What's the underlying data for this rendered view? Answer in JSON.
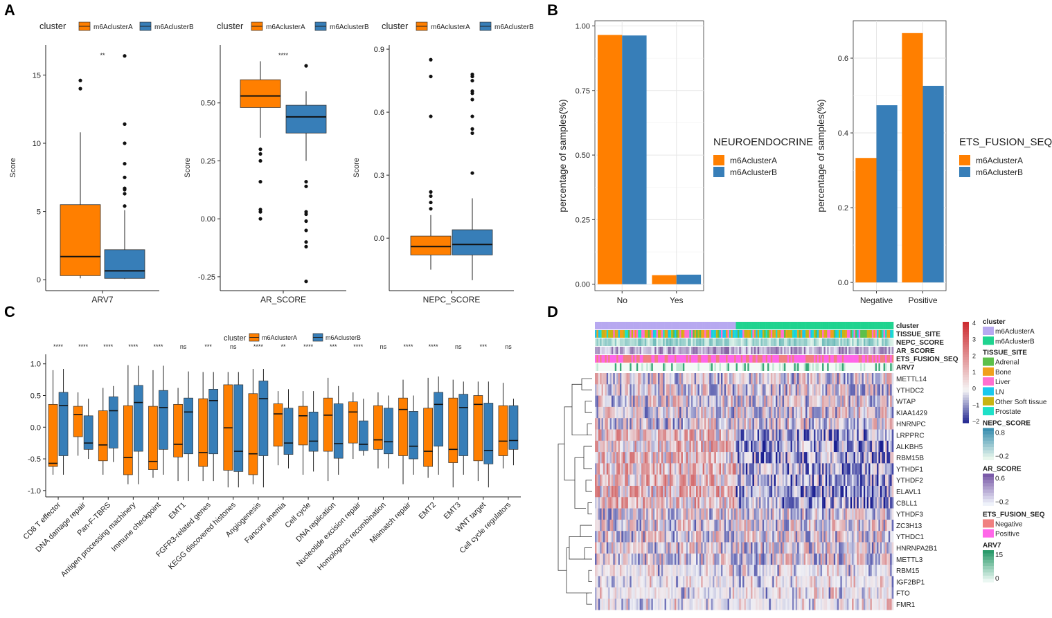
{
  "panels": {
    "a": "A",
    "b": "B",
    "c": "C",
    "d": "D"
  },
  "colors": {
    "clusterA": "#ff7f00",
    "clusterB": "#377eb8"
  },
  "chart_data": [
    {
      "id": "A1",
      "type": "box",
      "legend_title": "cluster",
      "legend": [
        "m6AclusterA",
        "m6AclusterB"
      ],
      "xlabel": "ARV7",
      "ylabel": "Score",
      "ylim": [
        -0.8,
        17.2
      ],
      "ticks": [
        0,
        5,
        10,
        15
      ],
      "tick_labels": [
        "0",
        "5",
        "10",
        "15"
      ],
      "significance": "**",
      "boxes": [
        {
          "group": "m6AclusterA",
          "min": 0.1,
          "q1": 0.3,
          "median": 1.7,
          "q3": 5.5,
          "max": 10.8,
          "outliers": [
            14.0,
            14.6
          ]
        },
        {
          "group": "m6AclusterB",
          "min": 0.05,
          "q1": 0.1,
          "median": 0.65,
          "q3": 2.2,
          "max": 5.1,
          "outliers": [
            5.4,
            6.3,
            6.6,
            6.7,
            7.5,
            8.5,
            10.0,
            11.4,
            16.4
          ]
        }
      ]
    },
    {
      "id": "A2",
      "type": "box",
      "legend_title": "cluster",
      "legend": [
        "m6AclusterA",
        "m6AclusterB"
      ],
      "xlabel": "AR_SCORE",
      "ylabel": "Score",
      "ylim": [
        -0.31,
        0.75
      ],
      "ticks": [
        -0.25,
        0,
        0.25,
        0.5
      ],
      "tick_labels": [
        "-0.25",
        "0.00",
        "0.25",
        "0.50"
      ],
      "significance": "****",
      "boxes": [
        {
          "group": "m6AclusterA",
          "min": 0.35,
          "q1": 0.48,
          "median": 0.53,
          "q3": 0.6,
          "max": 0.68,
          "outliers": [
            0.3,
            0.28,
            0.25,
            0.16,
            0.04,
            0.03,
            0.0
          ]
        },
        {
          "group": "m6AclusterB",
          "min": 0.25,
          "q1": 0.37,
          "median": 0.44,
          "q3": 0.49,
          "max": 0.55,
          "outliers": [
            0.66,
            0.16,
            0.14,
            0.03,
            0.02,
            -0.01,
            -0.05,
            -0.1,
            -0.12,
            -0.27
          ]
        }
      ]
    },
    {
      "id": "A3",
      "type": "box",
      "legend_title": "cluster",
      "legend": [
        "m6AclusterA",
        "m6AclusterB"
      ],
      "xlabel": "NEPC_SCORE",
      "ylabel": "Score",
      "ylim": [
        -0.25,
        0.92
      ],
      "ticks": [
        0,
        0.3,
        0.6,
        0.9
      ],
      "tick_labels": [
        "0.0",
        "0.3",
        "0.6",
        "0.9"
      ],
      "significance": "",
      "boxes": [
        {
          "group": "m6AclusterA",
          "min": -0.15,
          "q1": -0.08,
          "median": -0.04,
          "q3": 0.01,
          "max": 0.11,
          "outliers": [
            0.14,
            0.17,
            0.2,
            0.22,
            0.58,
            0.77,
            0.85
          ]
        },
        {
          "group": "m6AclusterB",
          "min": -0.2,
          "q1": -0.08,
          "median": -0.03,
          "q3": 0.04,
          "max": 0.19,
          "outliers": [
            0.31,
            0.5,
            0.52,
            0.58,
            0.66,
            0.69,
            0.7,
            0.75,
            0.77,
            0.78
          ]
        }
      ]
    },
    {
      "id": "B1",
      "type": "bar",
      "legend_title": "NEUROENDOCRINE",
      "legend": [
        "m6AclusterA",
        "m6AclusterB"
      ],
      "categories": [
        "No",
        "Yes"
      ],
      "ylabel": "percentage of samples(%)",
      "ylim": [
        -0.025,
        1.02
      ],
      "ticks": [
        0,
        0.25,
        0.5,
        0.75,
        1.0
      ],
      "tick_labels": [
        "0.00",
        "0.25",
        "0.50",
        "0.75",
        "1.00"
      ],
      "series": [
        {
          "name": "m6AclusterA",
          "values": [
            0.965,
            0.035
          ]
        },
        {
          "name": "m6AclusterB",
          "values": [
            0.963,
            0.037
          ]
        }
      ]
    },
    {
      "id": "B2",
      "type": "bar",
      "legend_title": "ETS_FUSION_SEQ",
      "legend": [
        "m6AclusterA",
        "m6AclusterB"
      ],
      "categories": [
        "Negative",
        "Positive"
      ],
      "ylabel": "percentage of samples(%)",
      "ylim": [
        -0.022,
        0.7
      ],
      "ticks": [
        0,
        0.2,
        0.4,
        0.6
      ],
      "tick_labels": [
        "0.0",
        "0.2",
        "0.4",
        "0.6"
      ],
      "series": [
        {
          "name": "m6AclusterA",
          "values": [
            0.333,
            0.667
          ]
        },
        {
          "name": "m6AclusterB",
          "values": [
            0.474,
            0.526
          ]
        }
      ]
    },
    {
      "id": "C",
      "type": "box",
      "legend_title": "cluster",
      "legend": [
        "m6AclusterA",
        "m6AclusterB"
      ],
      "ylim": [
        -1.1,
        1.15
      ],
      "ticks": [
        -1.0,
        -0.5,
        0.0,
        0.5,
        1.0
      ],
      "tick_labels": [
        "-1.0",
        "-0.5",
        "0.0",
        "0.5",
        "1.0"
      ],
      "categories": [
        "CD8 T effector",
        "DNA damage repair",
        "Pan-F-TBRS",
        "Antigen processing machinery",
        "Immune checkpoint",
        "EMT1",
        "FGFR3-related genes",
        "KEGG discovered histones",
        "Angiogenesis",
        "Fanconi anemia",
        "Cell cycle",
        "DNA replication",
        "Nucleotide excision repair",
        "Homologous recombination",
        "Mismatch repair",
        "EMT2",
        "EMT3",
        "WNT target",
        "Cell cycle regulators"
      ],
      "significance": [
        "****",
        "****",
        "****",
        "****",
        "****",
        "ns",
        "***",
        "ns",
        "****",
        "**",
        "****",
        "***",
        "****",
        "ns",
        "****",
        "****",
        "ns",
        "***",
        "ns"
      ],
      "boxesA": [
        [
          -0.75,
          -0.62,
          -0.57,
          0.36,
          0.9
        ],
        [
          -0.45,
          -0.15,
          0.2,
          0.33,
          0.55
        ],
        [
          -0.75,
          -0.53,
          -0.28,
          0.26,
          0.62
        ],
        [
          -0.9,
          -0.75,
          -0.48,
          0.34,
          0.98
        ],
        [
          -0.8,
          -0.67,
          -0.54,
          0.33,
          0.9
        ],
        [
          -0.85,
          -0.47,
          -0.27,
          0.36,
          0.62
        ],
        [
          -0.85,
          -0.62,
          -0.4,
          0.45,
          0.87
        ],
        [
          -0.95,
          -0.68,
          -0.01,
          0.67,
          0.87
        ],
        [
          -0.9,
          -0.75,
          -0.42,
          0.53,
          0.92
        ],
        [
          -0.6,
          -0.3,
          0.21,
          0.37,
          0.57
        ],
        [
          -0.75,
          -0.28,
          0.18,
          0.33,
          0.57
        ],
        [
          -0.85,
          -0.38,
          0.19,
          0.46,
          0.78
        ],
        [
          -0.5,
          -0.25,
          0.24,
          0.4,
          0.55
        ],
        [
          -0.65,
          -0.35,
          -0.2,
          0.34,
          0.55
        ],
        [
          -0.9,
          -0.45,
          0.28,
          0.46,
          0.75
        ],
        [
          -0.8,
          -0.62,
          -0.38,
          0.3,
          0.78
        ],
        [
          -0.95,
          -0.56,
          -0.35,
          0.46,
          0.75
        ],
        [
          -0.85,
          -0.53,
          0.36,
          0.5,
          0.72
        ],
        [
          -0.65,
          -0.45,
          -0.22,
          0.34,
          0.7
        ]
      ],
      "boxesB": [
        [
          -0.75,
          -0.45,
          0.34,
          0.55,
          0.92
        ],
        [
          -0.5,
          -0.35,
          -0.25,
          0.18,
          0.45
        ],
        [
          -0.55,
          -0.33,
          0.26,
          0.48,
          0.65
        ],
        [
          -0.9,
          -0.38,
          0.39,
          0.66,
          0.97
        ],
        [
          -0.75,
          -0.35,
          0.31,
          0.58,
          0.97
        ],
        [
          -0.85,
          -0.42,
          0.24,
          0.46,
          0.88
        ],
        [
          -0.85,
          -0.42,
          0.42,
          0.6,
          0.87
        ],
        [
          -0.95,
          -0.7,
          -0.38,
          0.67,
          0.87
        ],
        [
          -0.95,
          -0.45,
          0.45,
          0.73,
          0.92
        ],
        [
          -0.65,
          -0.43,
          -0.25,
          0.3,
          0.6
        ],
        [
          -0.7,
          -0.38,
          -0.22,
          0.24,
          0.57
        ],
        [
          -0.75,
          -0.49,
          -0.26,
          0.37,
          0.65
        ],
        [
          -0.45,
          -0.37,
          -0.27,
          0.1,
          0.45
        ],
        [
          -0.65,
          -0.42,
          -0.23,
          0.3,
          0.5
        ],
        [
          -0.75,
          -0.5,
          -0.3,
          0.25,
          0.5
        ],
        [
          -0.75,
          -0.3,
          0.36,
          0.55,
          0.8
        ],
        [
          -0.75,
          -0.45,
          0.31,
          0.52,
          0.72
        ],
        [
          -0.95,
          -0.58,
          -0.37,
          0.38,
          0.72
        ],
        [
          -0.6,
          -0.35,
          -0.21,
          0.34,
          0.45
        ]
      ]
    },
    {
      "id": "D",
      "type": "heatmap",
      "annotation_rows": [
        "cluster",
        "TISSUE_SITE",
        "NEPC_SCORE",
        "AR_SCORE",
        "ETS_FUSION_SEQ",
        "ARV7"
      ],
      "rows": [
        "METTL14",
        "YTHDC2",
        "WTAP",
        "KIAA1429",
        "HNRNPC",
        "LRPPRC",
        "ALKBH5",
        "RBM15B",
        "YTHDF1",
        "YTHDF2",
        "ELAVL1",
        "CBLL1",
        "YTHDF3",
        "ZC3H13",
        "YTHDC1",
        "HNRNPA2B1",
        "METTL3",
        "RBM15",
        "IGF2BP1",
        "FTO",
        "FMR1"
      ],
      "scale": {
        "ticks": [
          "4",
          "3",
          "2",
          "1",
          "0",
          "−1",
          "−2"
        ],
        "min": -2,
        "max": 4
      },
      "legends": [
        {
          "title": "cluster",
          "items": [
            {
              "label": "m6AclusterA",
              "color": "#b7a8f0"
            },
            {
              "label": "m6AclusterB",
              "color": "#1fd38f"
            }
          ]
        },
        {
          "title": "TISSUE_SITE",
          "items": [
            {
              "label": "Adrenal",
              "color": "#5cc04a"
            },
            {
              "label": "Bone",
              "color": "#f0a01c"
            },
            {
              "label": "Liver",
              "color": "#ff6fd0"
            },
            {
              "label": "LN",
              "color": "#18c8ee"
            },
            {
              "label": "Other Soft tissue",
              "color": "#c8b414"
            },
            {
              "label": "Prostate",
              "color": "#1ee0c8"
            }
          ]
        },
        {
          "title": "NEPC_SCORE",
          "ticks": [
            "0.8",
            "−0.2"
          ],
          "gradient": [
            "#3a8fb0",
            "#e8f6ec"
          ]
        },
        {
          "title": "AR_SCORE",
          "ticks": [
            "0.6",
            "−0.2"
          ],
          "gradient": [
            "#7a5aa8",
            "#eef2fa"
          ]
        },
        {
          "title": "ETS_FUSION_SEQ",
          "items": [
            {
              "label": "Negative",
              "color": "#f08080"
            },
            {
              "label": "Positive",
              "color": "#ff66e8"
            }
          ]
        },
        {
          "title": "ARV7",
          "ticks": [
            "15",
            "0"
          ],
          "gradient": [
            "#2a9a6a",
            "#eaf7f2"
          ]
        }
      ]
    }
  ]
}
